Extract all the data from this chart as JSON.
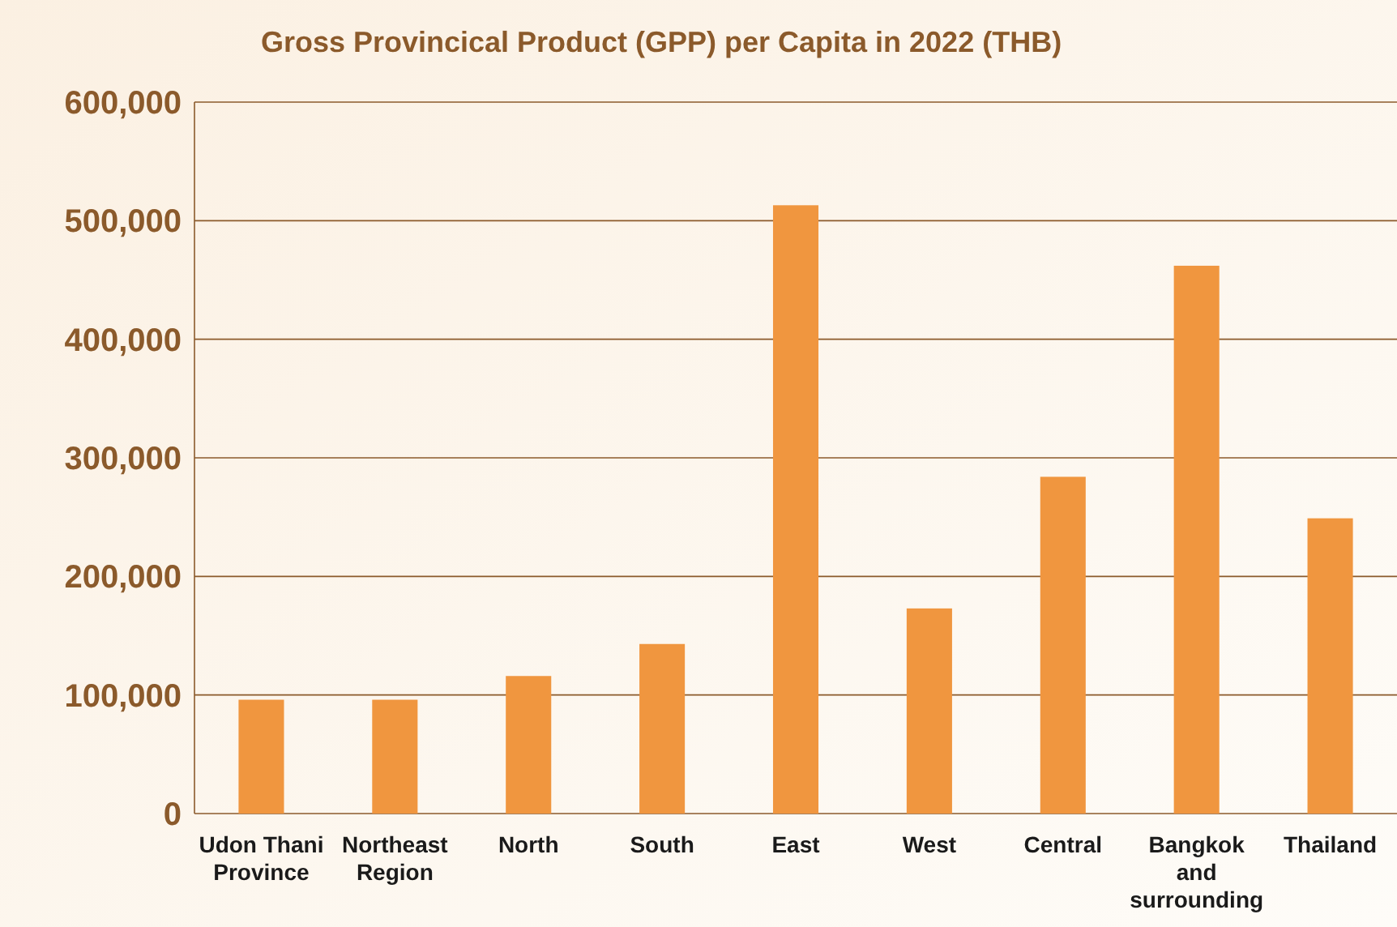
{
  "chart_data": {
    "type": "bar",
    "title": "Gross Provincical Product (GPP) per Capita in 2022 (THB)",
    "categories": [
      "Udon Thani Province",
      "Northeast Region",
      "North",
      "South",
      "East",
      "West",
      "Central",
      "Bangkok and surrounding",
      "Thailand"
    ],
    "values": [
      96000,
      96000,
      116000,
      143000,
      513000,
      173000,
      284000,
      462000,
      249000
    ],
    "color": "#f0963f",
    "ylim": [
      0,
      600000
    ],
    "yticks": [
      {
        "value": 0,
        "label": "0"
      },
      {
        "value": 100000,
        "label": "100,000"
      },
      {
        "value": 200000,
        "label": "200,000"
      },
      {
        "value": 300000,
        "label": "300,000"
      },
      {
        "value": 400000,
        "label": "400,000"
      },
      {
        "value": 500000,
        "label": "500,000"
      },
      {
        "value": 600000,
        "label": "600,000"
      }
    ],
    "grid": "y"
  }
}
